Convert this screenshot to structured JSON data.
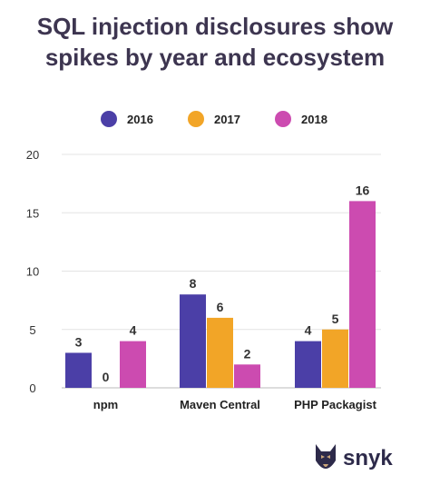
{
  "title_lines": [
    "SQL injection disclosures show",
    "spikes by year and ecosystem"
  ],
  "logo_text": "snyk",
  "chart_data": {
    "type": "bar",
    "title": "SQL injection disclosures show spikes by year and ecosystem",
    "categories": [
      "npm",
      "Maven Central",
      "PHP Packagist"
    ],
    "series": [
      {
        "name": "2016",
        "color": "#4b3fa7",
        "values": [
          3,
          8,
          4
        ]
      },
      {
        "name": "2017",
        "color": "#f2a527",
        "values": [
          0,
          6,
          5
        ]
      },
      {
        "name": "2018",
        "color": "#cc4bb0",
        "values": [
          4,
          2,
          16
        ]
      }
    ],
    "ylim": [
      0,
      20
    ],
    "yticks": [
      0,
      5,
      10,
      15,
      20
    ],
    "grid": true,
    "legend_position": "top"
  }
}
